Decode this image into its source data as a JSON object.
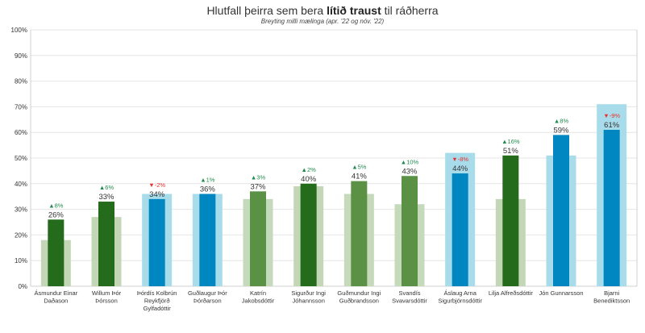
{
  "chart_data": {
    "type": "bar",
    "title_pre": "Hlutfall þeirra sem bera ",
    "title_bold": "lítið traust",
    "title_post": " til ráðherra",
    "subtitle": "Breyting milli mælinga (apr. '22 og nóv. '22)",
    "ylim": [
      0,
      100
    ],
    "yticks": [
      "0%",
      "10%",
      "20%",
      "30%",
      "40%",
      "50%",
      "60%",
      "70%",
      "80%",
      "90%",
      "100%"
    ],
    "xlabel": "",
    "ylabel": "",
    "series": [
      {
        "name": "apr. '22",
        "values": [
          18,
          27,
          36,
          36,
          34,
          39,
          36,
          32,
          52,
          34,
          51,
          71
        ]
      },
      {
        "name": "nóv. '22",
        "values": [
          26,
          33,
          34,
          36,
          37,
          40,
          41,
          43,
          44,
          51,
          59,
          61
        ]
      }
    ],
    "categories": [
      {
        "name": "Ásmundur Einar Daðason",
        "lines": [
          "Ásmundur Einar",
          "Daðason"
        ],
        "label": "26%",
        "change": "▲8%",
        "dir": "up",
        "bg": "#c3d7b6",
        "fg": "#246b1b"
      },
      {
        "name": "Willum Þór Þórsson",
        "lines": [
          "Willum Þór",
          "Þórsson"
        ],
        "label": "33%",
        "change": "▲6%",
        "dir": "up",
        "bg": "#c3d7b6",
        "fg": "#246b1b"
      },
      {
        "name": "Þórdís Kolbrún Reykfjörð Gylfadóttir",
        "lines": [
          "Þórdís Kolbrún",
          "Reykfjörð",
          "Gylfadóttir"
        ],
        "label": "34%",
        "change": "▼-2%",
        "dir": "down",
        "bg": "#a8dcea",
        "fg": "#0086c0"
      },
      {
        "name": "Guðlaugur Þór Þórðarson",
        "lines": [
          "Guðlaugur Þór",
          "Þórðarson"
        ],
        "label": "36%",
        "change": "▲1%",
        "dir": "up",
        "bg": "#a8dcea",
        "fg": "#0086c0"
      },
      {
        "name": "Katrín Jakobsdóttir",
        "lines": [
          "Katrín",
          "Jakobsdóttir"
        ],
        "label": "37%",
        "change": "▲3%",
        "dir": "up",
        "bg": "#c5d9bb",
        "fg": "#5a9145"
      },
      {
        "name": "Sigurður Ingi Jóhannsson",
        "lines": [
          "Sigurður Ingi",
          "Jóhannsson"
        ],
        "label": "40%",
        "change": "▲2%",
        "dir": "up",
        "bg": "#c3d7b6",
        "fg": "#246b1b"
      },
      {
        "name": "Guðmundur Ingi Guðbrandsson",
        "lines": [
          "Guðmundur Ingi",
          "Guðbrandsson"
        ],
        "label": "41%",
        "change": "▲5%",
        "dir": "up",
        "bg": "#c5d9bb",
        "fg": "#5a9145"
      },
      {
        "name": "Svandís Svavarsdóttir",
        "lines": [
          "Svandís",
          "Svavarsdóttir"
        ],
        "label": "43%",
        "change": "▲10%",
        "dir": "up",
        "bg": "#c5d9bb",
        "fg": "#5a9145"
      },
      {
        "name": "Áslaug Arna Sigurbjörnsdóttir",
        "lines": [
          "Áslaug Arna",
          "Sigurbjörnsdóttir"
        ],
        "label": "44%",
        "change": "▼-8%",
        "dir": "down",
        "bg": "#a8dcea",
        "fg": "#0086c0"
      },
      {
        "name": "Lilja Alfreðsdóttir",
        "lines": [
          "Lilja Alfreðsdóttir"
        ],
        "label": "51%",
        "change": "▲16%",
        "dir": "up",
        "bg": "#c3d7b6",
        "fg": "#246b1b"
      },
      {
        "name": "Jón Gunnarsson",
        "lines": [
          "Jón Gunnarsson"
        ],
        "label": "59%",
        "change": "▲8%",
        "dir": "up",
        "bg": "#a8dcea",
        "fg": "#0086c0"
      },
      {
        "name": "Bjarni Benediktsson",
        "lines": [
          "Bjarni",
          "Benediktsson"
        ],
        "label": "61%",
        "change": "▼-9%",
        "dir": "down",
        "bg": "#a8dcea",
        "fg": "#0086c0"
      }
    ],
    "colors": {
      "up": "#1f8a4c",
      "down": "#e8312f",
      "grid": "#e6e6e6",
      "axis": "#d0d0d0",
      "text": "#333333"
    }
  }
}
